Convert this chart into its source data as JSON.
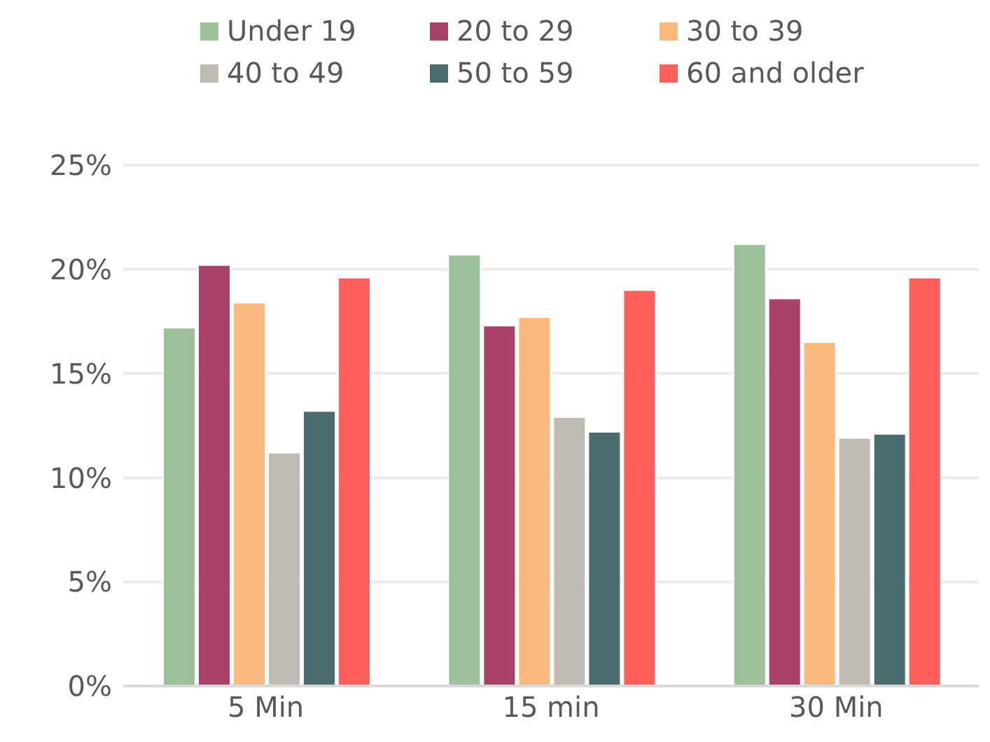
{
  "chart_data": {
    "type": "bar",
    "categories": [
      "5 Min",
      "15 min",
      "30 Min"
    ],
    "series": [
      {
        "name": "Under 19",
        "color": "#9dbf9a",
        "values": [
          17.2,
          20.7,
          21.2
        ]
      },
      {
        "name": "20 to 29",
        "color": "#a8426a",
        "values": [
          20.2,
          17.3,
          18.6
        ]
      },
      {
        "name": "30 to 39",
        "color": "#fab87c",
        "values": [
          18.4,
          17.7,
          16.5
        ]
      },
      {
        "name": "40 to 49",
        "color": "#bfbab3",
        "values": [
          11.2,
          12.9,
          11.9
        ]
      },
      {
        "name": "50 to 59",
        "color": "#4a6c6e",
        "values": [
          13.2,
          12.2,
          12.1
        ]
      },
      {
        "name": "60 and older",
        "color": "#ff5e5a",
        "values": [
          19.6,
          19.0,
          19.6
        ]
      }
    ],
    "ylim": [
      0,
      25
    ],
    "yticks": [
      {
        "value": 0,
        "label": "0%"
      },
      {
        "value": 5,
        "label": "5%"
      },
      {
        "value": 10,
        "label": "10%"
      },
      {
        "value": 15,
        "label": "15%"
      },
      {
        "value": 20,
        "label": "20%"
      },
      {
        "value": 25,
        "label": "25%"
      }
    ],
    "grid": "y",
    "legend": "top"
  }
}
